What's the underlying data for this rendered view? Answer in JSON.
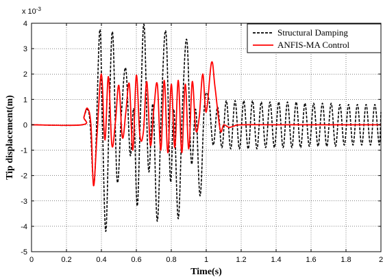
{
  "chart_data": {
    "type": "line",
    "title": "",
    "xlabel": "Time(s)",
    "ylabel": "Tip displacement(m)",
    "xlim": [
      0,
      2
    ],
    "ylim": [
      -5,
      4
    ],
    "y_multiplier_label": "x 10",
    "y_multiplier_exponent": "-3",
    "x_ticks": [
      0,
      0.2,
      0.4,
      0.6,
      0.8,
      1,
      1.2,
      1.4,
      1.6,
      1.8,
      2
    ],
    "x_tick_labels": [
      "0",
      "0.2",
      "0.4",
      "0.6",
      "0.8",
      "1",
      "1.2",
      "1.4",
      "1.6",
      "1.8",
      "2"
    ],
    "y_ticks": [
      -5,
      -4,
      -3,
      -2,
      -1,
      0,
      1,
      2,
      3,
      4
    ],
    "y_tick_labels": [
      "-5",
      "-4",
      "-3",
      "-2",
      "-1",
      "0",
      "1",
      "2",
      "3",
      "4"
    ],
    "grid": true,
    "legend_position": "top-right",
    "series": [
      {
        "name": "Structural Damping",
        "color": "#000000",
        "style": "dashed",
        "x": [
          0,
          0.29,
          0.3,
          0.32,
          0.335,
          0.36,
          0.39,
          0.405,
          0.425,
          0.445,
          0.465,
          0.49,
          0.515,
          0.54,
          0.565,
          0.585,
          0.605,
          0.625,
          0.645,
          0.67,
          0.695,
          0.72,
          0.745,
          0.77,
          0.795,
          0.815,
          0.84,
          0.865,
          0.89,
          0.915,
          0.94,
          0.965,
          0.99,
          1.015,
          1.04,
          1.065,
          1.09,
          1.115,
          1.14,
          1.165,
          1.19,
          1.215,
          1.24,
          1.265,
          1.29,
          1.315,
          1.34,
          1.365,
          1.39,
          1.415,
          1.44,
          1.465,
          1.49,
          1.515,
          1.54,
          1.565,
          1.59,
          1.615,
          1.64,
          1.665,
          1.69,
          1.715,
          1.74,
          1.765,
          1.79,
          1.815,
          1.84,
          1.865,
          1.89,
          1.915,
          1.94,
          1.965,
          1.99,
          2
        ],
        "y": [
          0,
          0,
          0.3,
          0.6,
          0.1,
          -2.2,
          3.7,
          0.3,
          -4.2,
          0.5,
          3.6,
          -2.2,
          0.5,
          2.2,
          -1.2,
          0.6,
          -3.2,
          0.8,
          3.9,
          -1.8,
          0.8,
          -3.8,
          1.0,
          3.6,
          -2.2,
          0.6,
          -3.7,
          0.9,
          3.3,
          -1.5,
          0.6,
          -2.8,
          0.8,
          1.0,
          -0.8,
          0.7,
          -0.9,
          0.95,
          -0.95,
          0.95,
          -0.95,
          0.95,
          -0.95,
          0.95,
          -0.95,
          0.9,
          -0.9,
          0.9,
          -0.9,
          0.9,
          -0.9,
          0.9,
          -0.9,
          0.9,
          -0.9,
          0.85,
          -0.85,
          0.85,
          -0.85,
          0.85,
          -0.85,
          0.85,
          -0.85,
          0.8,
          -0.8,
          0.8,
          -0.8,
          0.8,
          -0.8,
          0.8,
          -0.8,
          0.8,
          -0.8,
          0.5
        ]
      },
      {
        "name": "ANFIS-MA Control",
        "color": "#ff0000",
        "style": "solid",
        "x": [
          0,
          0.29,
          0.3,
          0.32,
          0.34,
          0.355,
          0.375,
          0.4,
          0.42,
          0.44,
          0.46,
          0.48,
          0.5,
          0.52,
          0.54,
          0.56,
          0.58,
          0.6,
          0.62,
          0.64,
          0.66,
          0.68,
          0.7,
          0.72,
          0.74,
          0.76,
          0.78,
          0.8,
          0.82,
          0.84,
          0.86,
          0.88,
          0.9,
          0.92,
          0.94,
          0.96,
          0.98,
          1.0,
          1.03,
          1.05,
          1.08,
          1.1,
          1.13,
          1.16,
          1.2,
          1.4,
          1.6,
          1.8,
          2
        ],
        "y": [
          0,
          0,
          0.3,
          0.65,
          0,
          -2.4,
          -0.4,
          2.0,
          -0.6,
          1.9,
          -0.8,
          0.1,
          1.55,
          -0.5,
          0.5,
          1.6,
          -1.0,
          1.95,
          -0.4,
          -0.3,
          1.7,
          -0.8,
          0.6,
          1.6,
          -1.0,
          1.75,
          -1.1,
          1.6,
          -0.9,
          1.75,
          -1.1,
          1.6,
          -0.95,
          1.7,
          -0.2,
          0.3,
          2.0,
          0.5,
          2.45,
          1.5,
          -0.2,
          0.0,
          -0.1,
          -0.05,
          0,
          0,
          0,
          0,
          0
        ]
      }
    ]
  }
}
